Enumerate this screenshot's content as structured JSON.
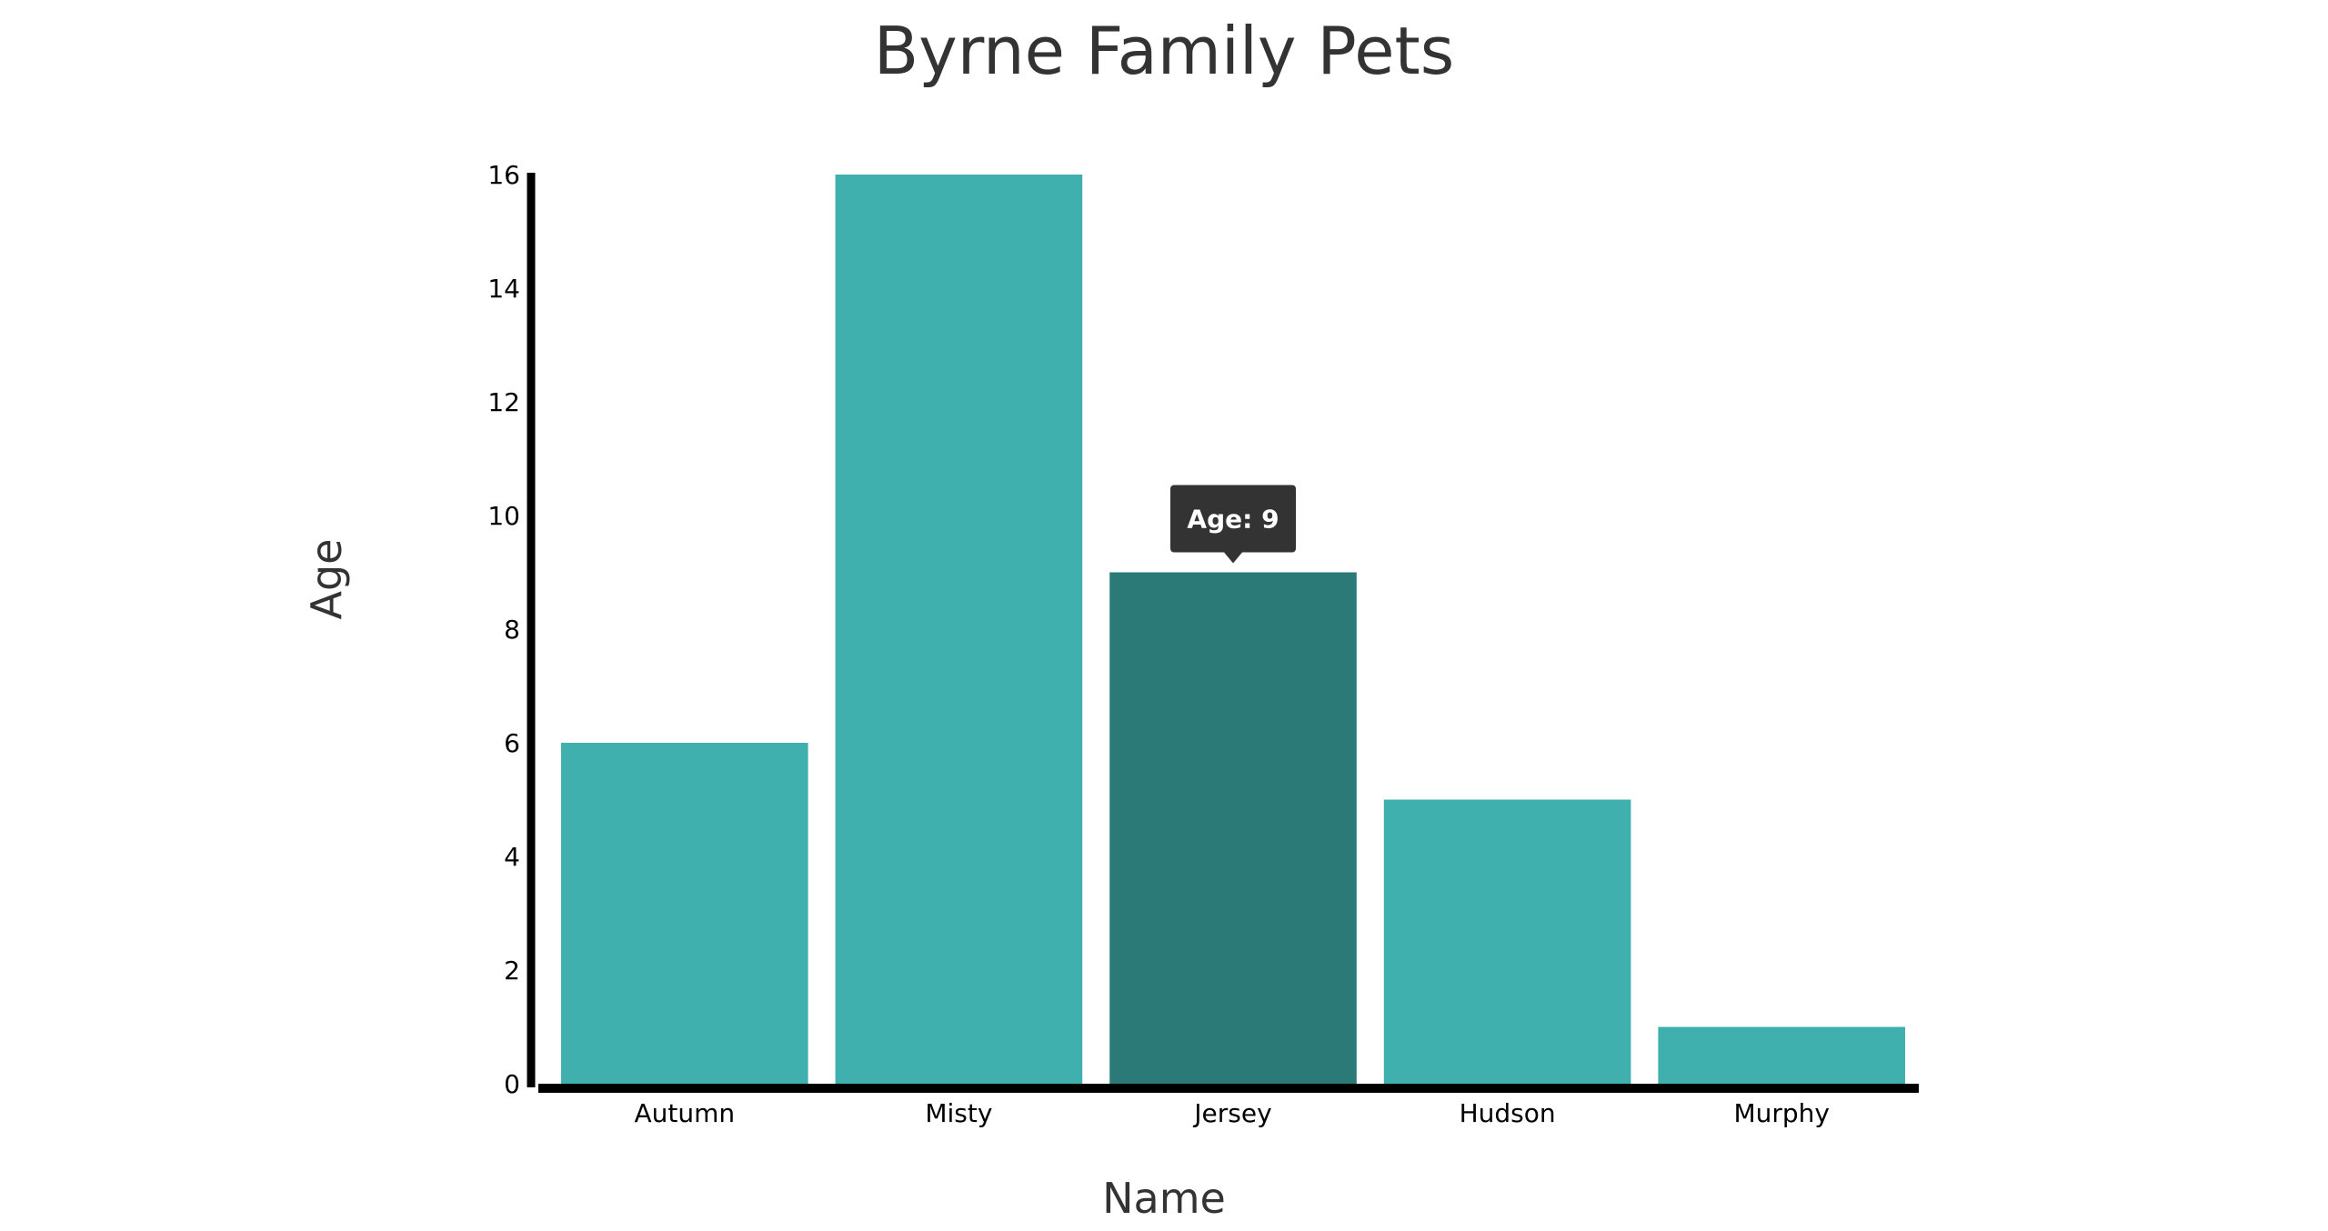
{
  "title": "Byrne Family Pets",
  "colors": {
    "bar": "#3fb0ae",
    "bar_highlight": "#2c7a77",
    "axis": "#000000",
    "tooltip_bg": "#333333",
    "tooltip_text": "#ffffff"
  },
  "tooltip": {
    "text": "Age: 9",
    "category": "Jersey"
  },
  "chart_data": {
    "type": "bar",
    "title": "Byrne Family Pets",
    "xlabel": "Name",
    "ylabel": "Age",
    "categories": [
      "Autumn",
      "Misty",
      "Jersey",
      "Hudson",
      "Murphy"
    ],
    "values": [
      6,
      16,
      9,
      5,
      1
    ],
    "ylim": [
      0,
      16
    ],
    "yticks": [
      0,
      2,
      4,
      6,
      8,
      10,
      12,
      14,
      16
    ],
    "highlighted": "Jersey",
    "grid": false,
    "legend": "none"
  }
}
